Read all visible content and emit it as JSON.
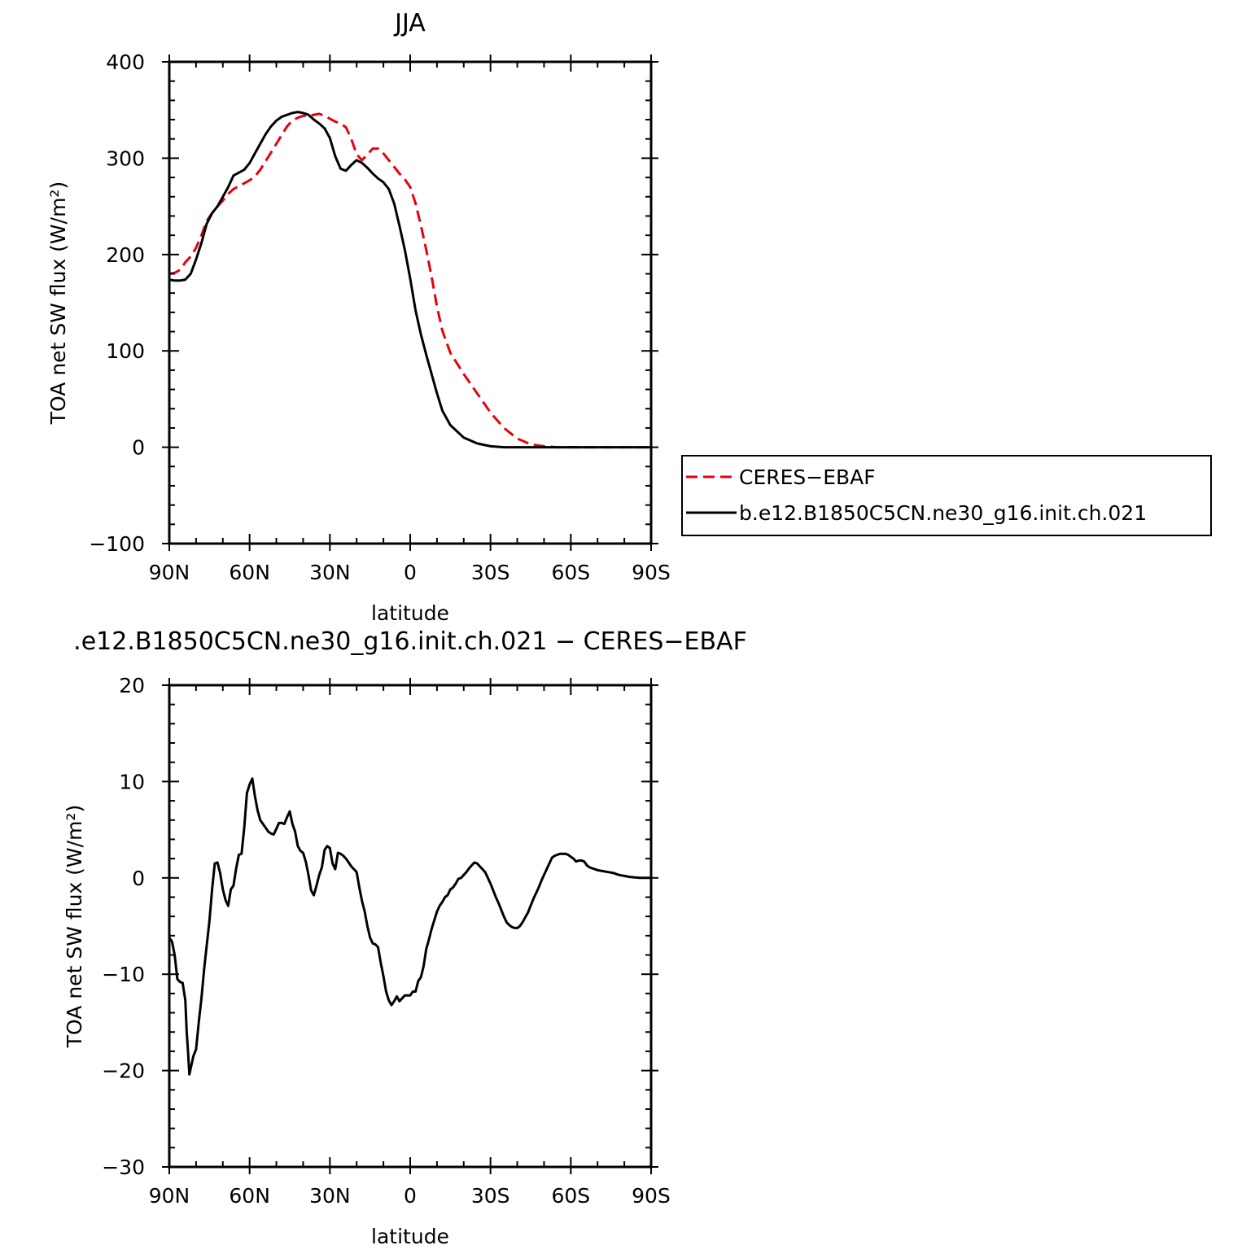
{
  "chart_data": [
    {
      "type": "line",
      "title": "JJA",
      "xlabel": "latitude",
      "ylabel": "TOA net SW flux (W/m²)",
      "xlim": [
        90,
        -90
      ],
      "ylim": [
        -100,
        400
      ],
      "xticks": [
        {
          "value": 90,
          "label": "90N"
        },
        {
          "value": 60,
          "label": "60N"
        },
        {
          "value": 30,
          "label": "30N"
        },
        {
          "value": 0,
          "label": "0"
        },
        {
          "value": -30,
          "label": "30S"
        },
        {
          "value": -60,
          "label": "60S"
        },
        {
          "value": -90,
          "label": "90S"
        }
      ],
      "yticks": [
        {
          "value": 400,
          "label": "400"
        },
        {
          "value": 300,
          "label": "300"
        },
        {
          "value": 200,
          "label": "200"
        },
        {
          "value": 100,
          "label": "100"
        },
        {
          "value": 0,
          "label": "0"
        },
        {
          "value": -100,
          "label": "−100"
        }
      ],
      "legend_position": "right",
      "series": [
        {
          "name": "CERES−EBAF",
          "color": "#e8000b",
          "dash": "dashed",
          "x": [
            90,
            88,
            86,
            84,
            82,
            80,
            78,
            76,
            74,
            72,
            70,
            68,
            66,
            64,
            62,
            60,
            58,
            56,
            54,
            52,
            50,
            48,
            46,
            44,
            42,
            40,
            38,
            36,
            34,
            32,
            30,
            28,
            26,
            24,
            22,
            20,
            18,
            16,
            14,
            12,
            10,
            8,
            6,
            4,
            2,
            0,
            -2,
            -4,
            -6,
            -8,
            -10,
            -12,
            -15,
            -20,
            -25,
            -30,
            -35,
            -40,
            -45,
            -50,
            -55,
            -60,
            -63,
            -66,
            -69,
            -72,
            -75,
            -80,
            -85,
            -90
          ],
          "y": [
            180,
            181,
            184,
            192,
            198,
            207,
            220,
            235,
            243,
            250,
            256,
            263,
            268,
            271,
            274,
            277,
            281,
            288,
            297,
            306,
            315,
            324,
            333,
            339,
            342,
            344,
            344,
            345,
            346,
            344,
            341,
            338,
            336,
            332,
            320,
            304,
            298,
            304,
            310,
            310,
            305,
            298,
            291,
            284,
            278,
            270,
            253,
            230,
            205,
            177,
            146,
            121,
            98,
            76,
            56,
            36,
            20,
            9,
            3,
            1,
            0,
            0,
            0,
            0,
            0,
            0,
            0,
            0,
            0,
            0
          ]
        },
        {
          "name": "b.e12.B1850C5CN.ne30_g16.init.ch.021",
          "color": "#000000",
          "dash": "solid",
          "x": [
            90,
            88,
            86,
            84,
            82,
            80,
            78,
            76,
            74,
            72,
            70,
            68,
            66,
            64,
            62,
            60,
            58,
            56,
            54,
            52,
            50,
            48,
            46,
            44,
            42,
            40,
            38,
            36,
            34,
            32,
            30,
            28,
            26,
            24,
            22,
            20,
            18,
            16,
            14,
            12,
            10,
            8,
            6,
            4,
            2,
            0,
            -2,
            -4,
            -6,
            -8,
            -10,
            -12,
            -15,
            -20,
            -25,
            -30,
            -35,
            -40,
            -45,
            -50,
            -55,
            -60,
            -63,
            -66,
            -69,
            -72,
            -75,
            -80,
            -85,
            -90
          ],
          "y": [
            174,
            173,
            173,
            174,
            180,
            195,
            212,
            232,
            243,
            250,
            260,
            270,
            282,
            285,
            288,
            295,
            305,
            315,
            325,
            333,
            339,
            343,
            345,
            347,
            348,
            347,
            345,
            340,
            336,
            331,
            321,
            302,
            289,
            287,
            293,
            298,
            295,
            290,
            284,
            279,
            275,
            268,
            253,
            230,
            205,
            175,
            142,
            117,
            96,
            76,
            56,
            38,
            23,
            10,
            4,
            1,
            0,
            0,
            0,
            0,
            0,
            0,
            0,
            0,
            0,
            0,
            0,
            0,
            0,
            0
          ]
        }
      ]
    },
    {
      "type": "line",
      "title": ".e12.B1850C5CN.ne30_g16.init.ch.021 − CERES−EBAF",
      "xlabel": "latitude",
      "ylabel": "TOA net SW flux (W/m²)",
      "xlim": [
        90,
        -90
      ],
      "ylim": [
        -30,
        20
      ],
      "xticks": [
        {
          "value": 90,
          "label": "90N"
        },
        {
          "value": 60,
          "label": "60N"
        },
        {
          "value": 30,
          "label": "30N"
        },
        {
          "value": 0,
          "label": "0"
        },
        {
          "value": -30,
          "label": "30S"
        },
        {
          "value": -60,
          "label": "60S"
        },
        {
          "value": -90,
          "label": "90S"
        }
      ],
      "yticks": [
        {
          "value": 20,
          "label": "20"
        },
        {
          "value": 10,
          "label": "10"
        },
        {
          "value": 0,
          "label": "0"
        },
        {
          "value": -10,
          "label": "−10"
        },
        {
          "value": -20,
          "label": "−20"
        },
        {
          "value": -30,
          "label": "−30"
        }
      ],
      "series": [
        {
          "color": "#000000",
          "dash": "solid",
          "x": [
            90,
            89,
            88,
            87,
            86,
            85,
            84,
            83.5,
            83,
            82.5,
            81,
            80,
            79,
            78,
            77,
            76,
            75,
            74,
            73,
            72,
            71,
            70,
            69,
            68,
            67,
            66,
            65,
            64,
            63,
            62,
            61,
            60,
            59,
            58,
            57,
            56,
            55,
            54,
            53,
            52,
            51,
            50,
            49,
            48,
            47,
            46,
            45,
            44,
            43,
            42,
            41,
            40,
            39,
            38,
            37,
            36,
            35,
            34,
            33,
            32,
            31,
            30,
            29,
            28,
            27,
            26,
            25,
            24,
            23,
            22,
            21,
            20,
            19,
            18,
            17,
            16,
            15,
            14,
            13,
            12,
            11,
            10,
            9,
            8,
            7,
            6,
            5,
            4,
            3,
            2,
            1,
            0,
            -1,
            -2,
            -3,
            -4,
            -5,
            -6,
            -7,
            -8,
            -9,
            -10,
            -11,
            -12,
            -13,
            -14,
            -15,
            -16,
            -17,
            -18,
            -19,
            -20,
            -21,
            -22,
            -23,
            -24,
            -25,
            -26,
            -27,
            -28,
            -29,
            -30,
            -31,
            -32,
            -33,
            -34,
            -35,
            -36,
            -37,
            -38,
            -39,
            -40,
            -41,
            -42,
            -43,
            -44,
            -45,
            -46,
            -47,
            -48,
            -49,
            -50,
            -51,
            -52,
            -53,
            -54,
            -55,
            -56,
            -57,
            -58,
            -59,
            -60,
            -61,
            -62,
            -63,
            -64,
            -65,
            -66,
            -67,
            -68,
            -69,
            -70,
            -72,
            -74,
            -76,
            -78,
            -80,
            -82,
            -84,
            -86,
            -88,
            -90
          ],
          "y": [
            -6.2,
            -6.6,
            -8.0,
            -10.5,
            -10.8,
            -10.9,
            -12.7,
            -16,
            -18,
            -20.4,
            -18.5,
            -17.8,
            -15,
            -12.5,
            -9.5,
            -7,
            -4.5,
            -1.2,
            1.5,
            1.6,
            0.5,
            -1.2,
            -2.3,
            -2.9,
            -1.2,
            -0.8,
            1.0,
            2.4,
            2.5,
            5.2,
            8.8,
            9.7,
            10.3,
            8.5,
            7.0,
            6.0,
            5.6,
            5.2,
            4.8,
            4.6,
            4.5,
            5.1,
            5.7,
            5.7,
            5.6,
            6.3,
            6.9,
            5.6,
            4.8,
            3.3,
            2.8,
            2.6,
            1.7,
            0.3,
            -1.3,
            -1.8,
            -0.8,
            0.3,
            1.1,
            2.9,
            3.3,
            3.1,
            1.5,
            0.9,
            2.6,
            2.5,
            2.3,
            2.0,
            1.6,
            1.2,
            0.9,
            0.6,
            -1.0,
            -2.4,
            -3.5,
            -5.0,
            -6.2,
            -6.8,
            -6.9,
            -7.2,
            -8.8,
            -10.2,
            -11.8,
            -12.7,
            -13.2,
            -12.8,
            -12.3,
            -12.8,
            -12.5,
            -12.2,
            -12.2,
            -12.2,
            -11.8,
            -11.8,
            -10.7,
            -10.3,
            -9.2,
            -7.4,
            -6.4,
            -5.3,
            -4.4,
            -3.5,
            -2.9,
            -2.5,
            -2.0,
            -1.8,
            -1.2,
            -1.0,
            -0.6,
            -0.1,
            0.0,
            0.3,
            0.6,
            1.0,
            1.3,
            1.6,
            1.5,
            1.2,
            0.9,
            0.6,
            0.0,
            -0.6,
            -1.3,
            -2.0,
            -2.6,
            -3.3,
            -4.0,
            -4.6,
            -4.9,
            -5.1,
            -5.2,
            -5.2,
            -5.0,
            -4.6,
            -4.1,
            -3.6,
            -2.9,
            -2.2,
            -1.6,
            -1.0,
            -0.3,
            0.3,
            0.9,
            1.5,
            2.1,
            2.3,
            2.4,
            2.5,
            2.5,
            2.5,
            2.4,
            2.2,
            2.0,
            1.7,
            1.8,
            1.8,
            1.7,
            1.3,
            1.1,
            1.0,
            0.9,
            0.8,
            0.7,
            0.6,
            0.5,
            0.3,
            0.2,
            0.1,
            0.05,
            0.0,
            0.0,
            0.0
          ]
        }
      ]
    }
  ]
}
